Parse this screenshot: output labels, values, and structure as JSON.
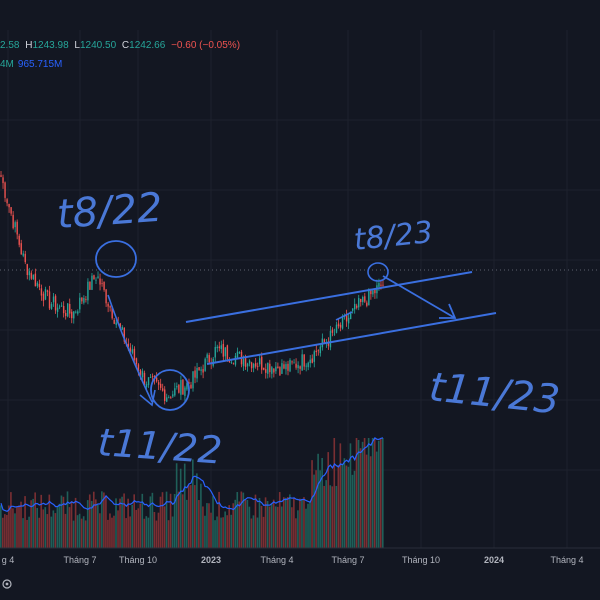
{
  "ohlc": {
    "open_value": "2.58",
    "high_key": "H",
    "high_value": "1243.98",
    "low_key": "L",
    "low_value": "1240.50",
    "close_key": "C",
    "close_value": "1242.66",
    "change": "−0.60 (−0.05%)"
  },
  "volume": {
    "value_a": "4M",
    "value_b": "965.715M"
  },
  "x_axis_labels": [
    "g 4",
    "Tháng 7",
    "Tháng 10",
    "2023",
    "Tháng 4",
    "Tháng 7",
    "Tháng 10",
    "2024",
    "Tháng 4"
  ],
  "annotations": {
    "t8_22": "t8/22",
    "t11_22": "t11/22",
    "t8_23": "t8/23",
    "t11_23": "t11/23"
  },
  "colors": {
    "background": "#131722",
    "up": "#26a69a",
    "down": "#ef5350",
    "volume_ma": "#2962ff",
    "ink": "#4a78d6"
  },
  "corner_icon": "settings-icon",
  "chart_data": {
    "type": "candlestick",
    "x": [
      "2022-04",
      "2022-05",
      "2022-06",
      "2022-07",
      "2022-08",
      "2022-09",
      "2022-10",
      "2022-11",
      "2022-12",
      "2023-01",
      "2023-02",
      "2023-03",
      "2023-04",
      "2023-05",
      "2023-06",
      "2023-07",
      "2023-08"
    ],
    "close": [
      1500,
      1290,
      1200,
      1170,
      1265,
      1130,
      1015,
      975,
      1010,
      1085,
      1065,
      1050,
      1040,
      1070,
      1125,
      1190,
      1242.66
    ],
    "series": [
      {
        "name": "Volume MA",
        "role": "volume_moving_average"
      }
    ],
    "xlabel": "",
    "ylabel": "",
    "grid": true
  }
}
